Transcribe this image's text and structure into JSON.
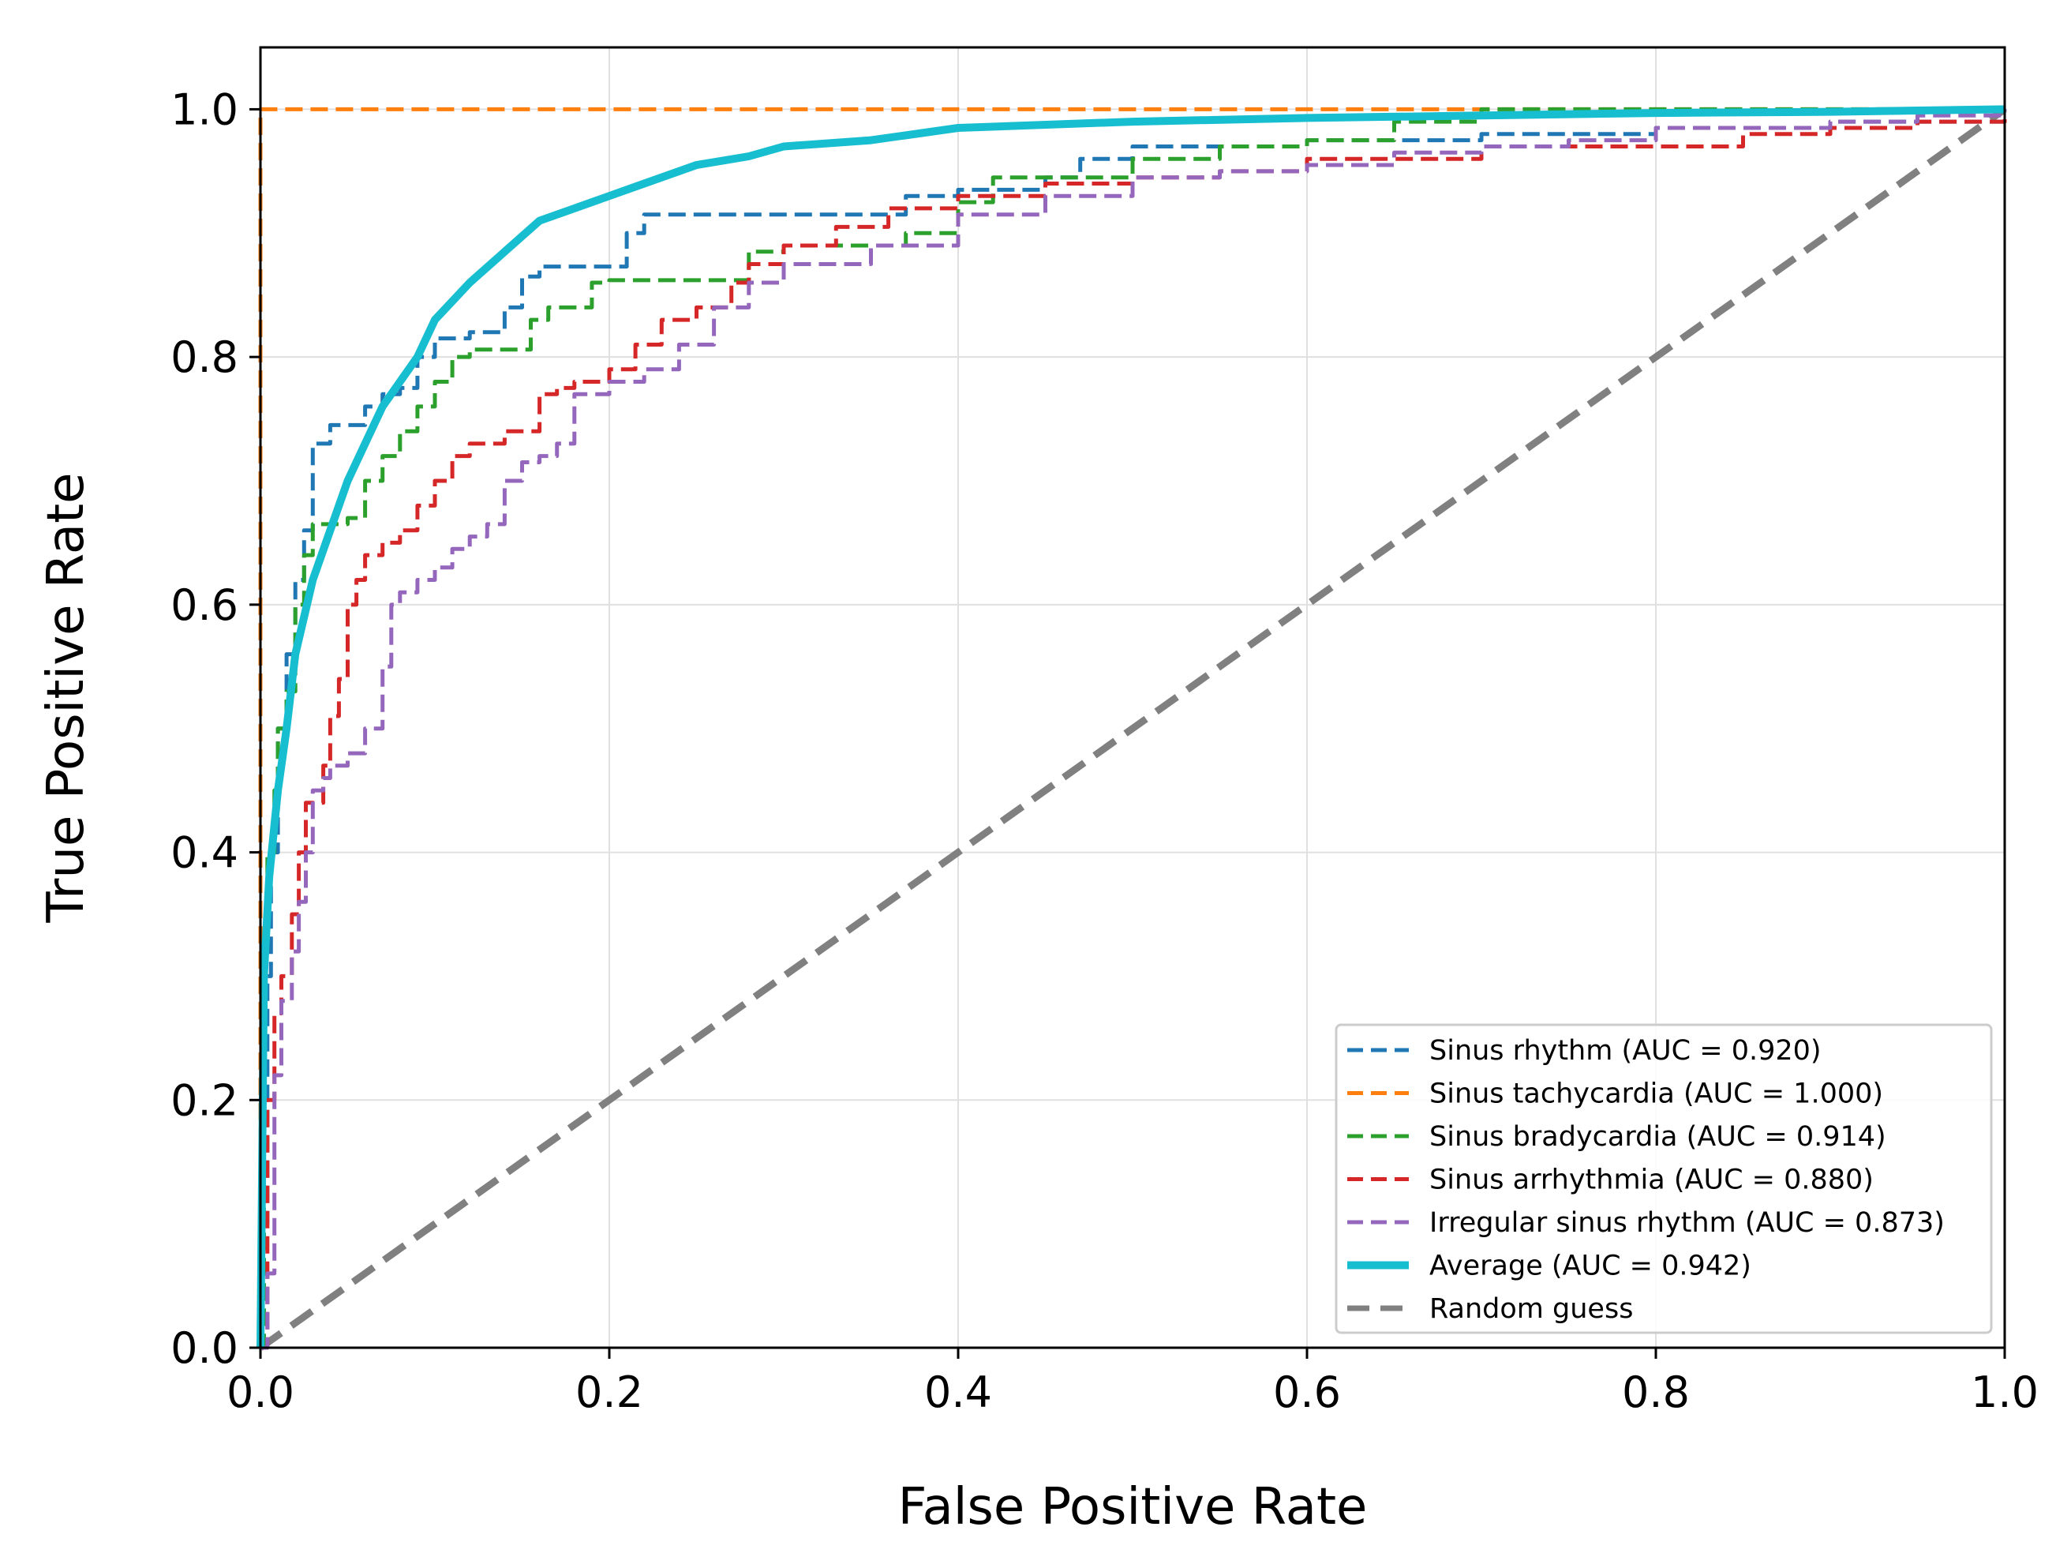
{
  "chart_data": {
    "type": "line",
    "title": "",
    "xlabel": "False Positive Rate",
    "ylabel": "True Positive Rate",
    "xlim": [
      0.0,
      1.0
    ],
    "ylim": [
      0.0,
      1.05
    ],
    "xticks": [
      "0.0",
      "0.2",
      "0.4",
      "0.6",
      "0.8",
      "1.0"
    ],
    "yticks": [
      "0.0",
      "0.2",
      "0.4",
      "0.6",
      "0.8",
      "1.0"
    ],
    "grid": true,
    "legend_position": "lower-right",
    "series": [
      {
        "name": "Sinus rhythm (AUC = 0.920)",
        "color": "#1f77b4",
        "style": "dashed",
        "x": [
          0,
          0.002,
          0.004,
          0.006,
          0.01,
          0.015,
          0.02,
          0.025,
          0.03,
          0.04,
          0.05,
          0.06,
          0.07,
          0.08,
          0.09,
          0.1,
          0.12,
          0.14,
          0.15,
          0.16,
          0.2,
          0.21,
          0.22,
          0.36,
          0.37,
          0.4,
          0.45,
          0.47,
          0.5,
          0.6,
          0.7,
          0.8,
          0.9,
          1.0
        ],
        "y": [
          0,
          0.1,
          0.3,
          0.4,
          0.5,
          0.56,
          0.62,
          0.66,
          0.73,
          0.745,
          0.745,
          0.76,
          0.77,
          0.775,
          0.8,
          0.815,
          0.82,
          0.84,
          0.865,
          0.873,
          0.873,
          0.9,
          0.915,
          0.915,
          0.93,
          0.935,
          0.945,
          0.96,
          0.97,
          0.975,
          0.98,
          0.985,
          0.99,
          1.0
        ]
      },
      {
        "name": "Sinus tachycardia (AUC = 1.000)",
        "color": "#ff7f0e",
        "style": "dashed",
        "x": [
          0,
          0.0,
          0.004,
          1.0
        ],
        "y": [
          0,
          1.0,
          1.0,
          1.0
        ]
      },
      {
        "name": "Sinus bradycardia (AUC = 0.914)",
        "color": "#2ca02c",
        "style": "dashed",
        "x": [
          0,
          0.002,
          0.004,
          0.008,
          0.01,
          0.015,
          0.02,
          0.025,
          0.03,
          0.035,
          0.04,
          0.05,
          0.06,
          0.07,
          0.08,
          0.09,
          0.1,
          0.11,
          0.12,
          0.13,
          0.155,
          0.165,
          0.19,
          0.2,
          0.28,
          0.3,
          0.35,
          0.37,
          0.4,
          0.42,
          0.45,
          0.5,
          0.55,
          0.6,
          0.65,
          0.7,
          0.8,
          1.0
        ],
        "y": [
          0,
          0.32,
          0.4,
          0.45,
          0.5,
          0.53,
          0.6,
          0.64,
          0.665,
          0.665,
          0.665,
          0.67,
          0.7,
          0.72,
          0.74,
          0.76,
          0.78,
          0.8,
          0.806,
          0.806,
          0.83,
          0.84,
          0.86,
          0.862,
          0.885,
          0.89,
          0.89,
          0.9,
          0.925,
          0.945,
          0.945,
          0.96,
          0.97,
          0.975,
          0.99,
          1.0,
          1.0,
          1.0
        ]
      },
      {
        "name": "Sinus arrhythmia (AUC = 0.880)",
        "color": "#d62728",
        "style": "dashed",
        "x": [
          0,
          0.004,
          0.008,
          0.012,
          0.018,
          0.022,
          0.026,
          0.03,
          0.036,
          0.04,
          0.045,
          0.05,
          0.055,
          0.06,
          0.07,
          0.08,
          0.09,
          0.1,
          0.11,
          0.12,
          0.13,
          0.14,
          0.16,
          0.17,
          0.18,
          0.2,
          0.215,
          0.23,
          0.25,
          0.27,
          0.28,
          0.3,
          0.33,
          0.36,
          0.4,
          0.45,
          0.5,
          0.55,
          0.6,
          0.7,
          0.8,
          0.85,
          0.9,
          0.95,
          1.0
        ],
        "y": [
          0,
          0.2,
          0.27,
          0.3,
          0.35,
          0.4,
          0.44,
          0.44,
          0.47,
          0.51,
          0.54,
          0.6,
          0.62,
          0.64,
          0.65,
          0.66,
          0.68,
          0.7,
          0.72,
          0.73,
          0.73,
          0.74,
          0.77,
          0.775,
          0.78,
          0.79,
          0.81,
          0.83,
          0.84,
          0.86,
          0.875,
          0.89,
          0.905,
          0.92,
          0.93,
          0.94,
          0.945,
          0.95,
          0.96,
          0.97,
          0.97,
          0.98,
          0.985,
          0.99,
          1.0
        ]
      },
      {
        "name": "Irregular sinus rhythm (AUC = 0.873)",
        "color": "#9467bd",
        "style": "dashed",
        "x": [
          0,
          0.004,
          0.008,
          0.012,
          0.018,
          0.022,
          0.026,
          0.03,
          0.036,
          0.04,
          0.05,
          0.06,
          0.07,
          0.075,
          0.08,
          0.09,
          0.1,
          0.11,
          0.12,
          0.13,
          0.14,
          0.15,
          0.16,
          0.17,
          0.18,
          0.2,
          0.22,
          0.24,
          0.26,
          0.28,
          0.3,
          0.35,
          0.4,
          0.45,
          0.5,
          0.55,
          0.6,
          0.65,
          0.7,
          0.75,
          0.8,
          0.85,
          0.9,
          0.95,
          1.0
        ],
        "y": [
          0,
          0.06,
          0.22,
          0.28,
          0.32,
          0.36,
          0.4,
          0.45,
          0.46,
          0.47,
          0.48,
          0.5,
          0.55,
          0.6,
          0.61,
          0.62,
          0.63,
          0.645,
          0.655,
          0.665,
          0.7,
          0.715,
          0.72,
          0.73,
          0.77,
          0.78,
          0.79,
          0.81,
          0.84,
          0.86,
          0.875,
          0.89,
          0.915,
          0.93,
          0.945,
          0.95,
          0.955,
          0.965,
          0.97,
          0.975,
          0.985,
          0.985,
          0.99,
          0.995,
          1.0
        ]
      },
      {
        "name": "Average (AUC = 0.942)",
        "color": "#17becf",
        "style": "solid",
        "x": [
          0,
          0.002,
          0.005,
          0.01,
          0.015,
          0.02,
          0.03,
          0.04,
          0.05,
          0.06,
          0.07,
          0.08,
          0.09,
          0.1,
          0.12,
          0.14,
          0.16,
          0.18,
          0.2,
          0.22,
          0.25,
          0.28,
          0.3,
          0.35,
          0.4,
          0.5,
          0.6,
          0.7,
          0.8,
          0.9,
          1.0
        ],
        "y": [
          0,
          0.3,
          0.38,
          0.45,
          0.5,
          0.56,
          0.62,
          0.66,
          0.7,
          0.73,
          0.76,
          0.78,
          0.8,
          0.83,
          0.86,
          0.885,
          0.91,
          0.92,
          0.93,
          0.94,
          0.955,
          0.962,
          0.97,
          0.975,
          0.985,
          0.99,
          0.993,
          0.995,
          0.997,
          0.998,
          1.0
        ]
      },
      {
        "name": "Random guess",
        "color": "#808080",
        "style": "dashed",
        "x": [
          0,
          1
        ],
        "y": [
          0,
          1
        ]
      }
    ]
  }
}
